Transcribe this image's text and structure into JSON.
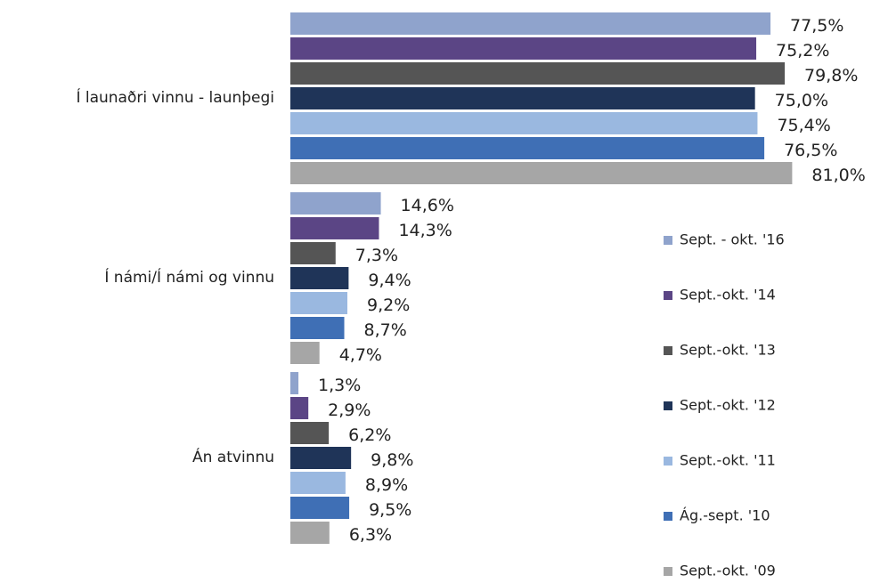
{
  "chart_data": {
    "type": "hbar",
    "categories": [
      "Í launaðri vinnu - launþegi",
      "Í námi/Í námi og vinnu",
      "Án atvinnu"
    ],
    "series": [
      {
        "name": "Sept. - okt. '16",
        "color": "#8fa3cc",
        "values": [
          77.5,
          14.6,
          1.3
        ],
        "value_labels": [
          "77,5%",
          "14,6%",
          "1,3%"
        ]
      },
      {
        "name": "Sept.-okt. '14",
        "color": "#5b4585",
        "values": [
          75.2,
          14.3,
          2.9
        ],
        "value_labels": [
          "75,2%",
          "14,3%",
          "2,9%"
        ]
      },
      {
        "name": "Sept.-okt. '13",
        "color": "#555555",
        "values": [
          79.8,
          7.3,
          6.2
        ],
        "value_labels": [
          "79,8%",
          "7,3%",
          "6,2%"
        ]
      },
      {
        "name": "Sept.-okt. '12",
        "color": "#1f3458",
        "values": [
          75.0,
          9.4,
          9.8
        ],
        "value_labels": [
          "75,0%",
          "9,4%",
          "9,8%"
        ]
      },
      {
        "name": "Sept.-okt. '11",
        "color": "#9ab8e0",
        "values": [
          75.4,
          9.2,
          8.9
        ],
        "value_labels": [
          "75,4%",
          "9,2%",
          "8,9%"
        ]
      },
      {
        "name": "Ág.-sept. '10",
        "color": "#3f6fb5",
        "values": [
          76.5,
          8.7,
          9.5
        ],
        "value_labels": [
          "76,5%",
          "8,7%",
          "9,5%"
        ]
      },
      {
        "name": "Sept.-okt. '09",
        "color": "#a6a6a6",
        "values": [
          81.0,
          4.7,
          6.3
        ],
        "value_labels": [
          "81,0%",
          "4,7%",
          "6,3%"
        ]
      }
    ],
    "xlim": [
      0,
      90
    ],
    "legend": "right"
  }
}
